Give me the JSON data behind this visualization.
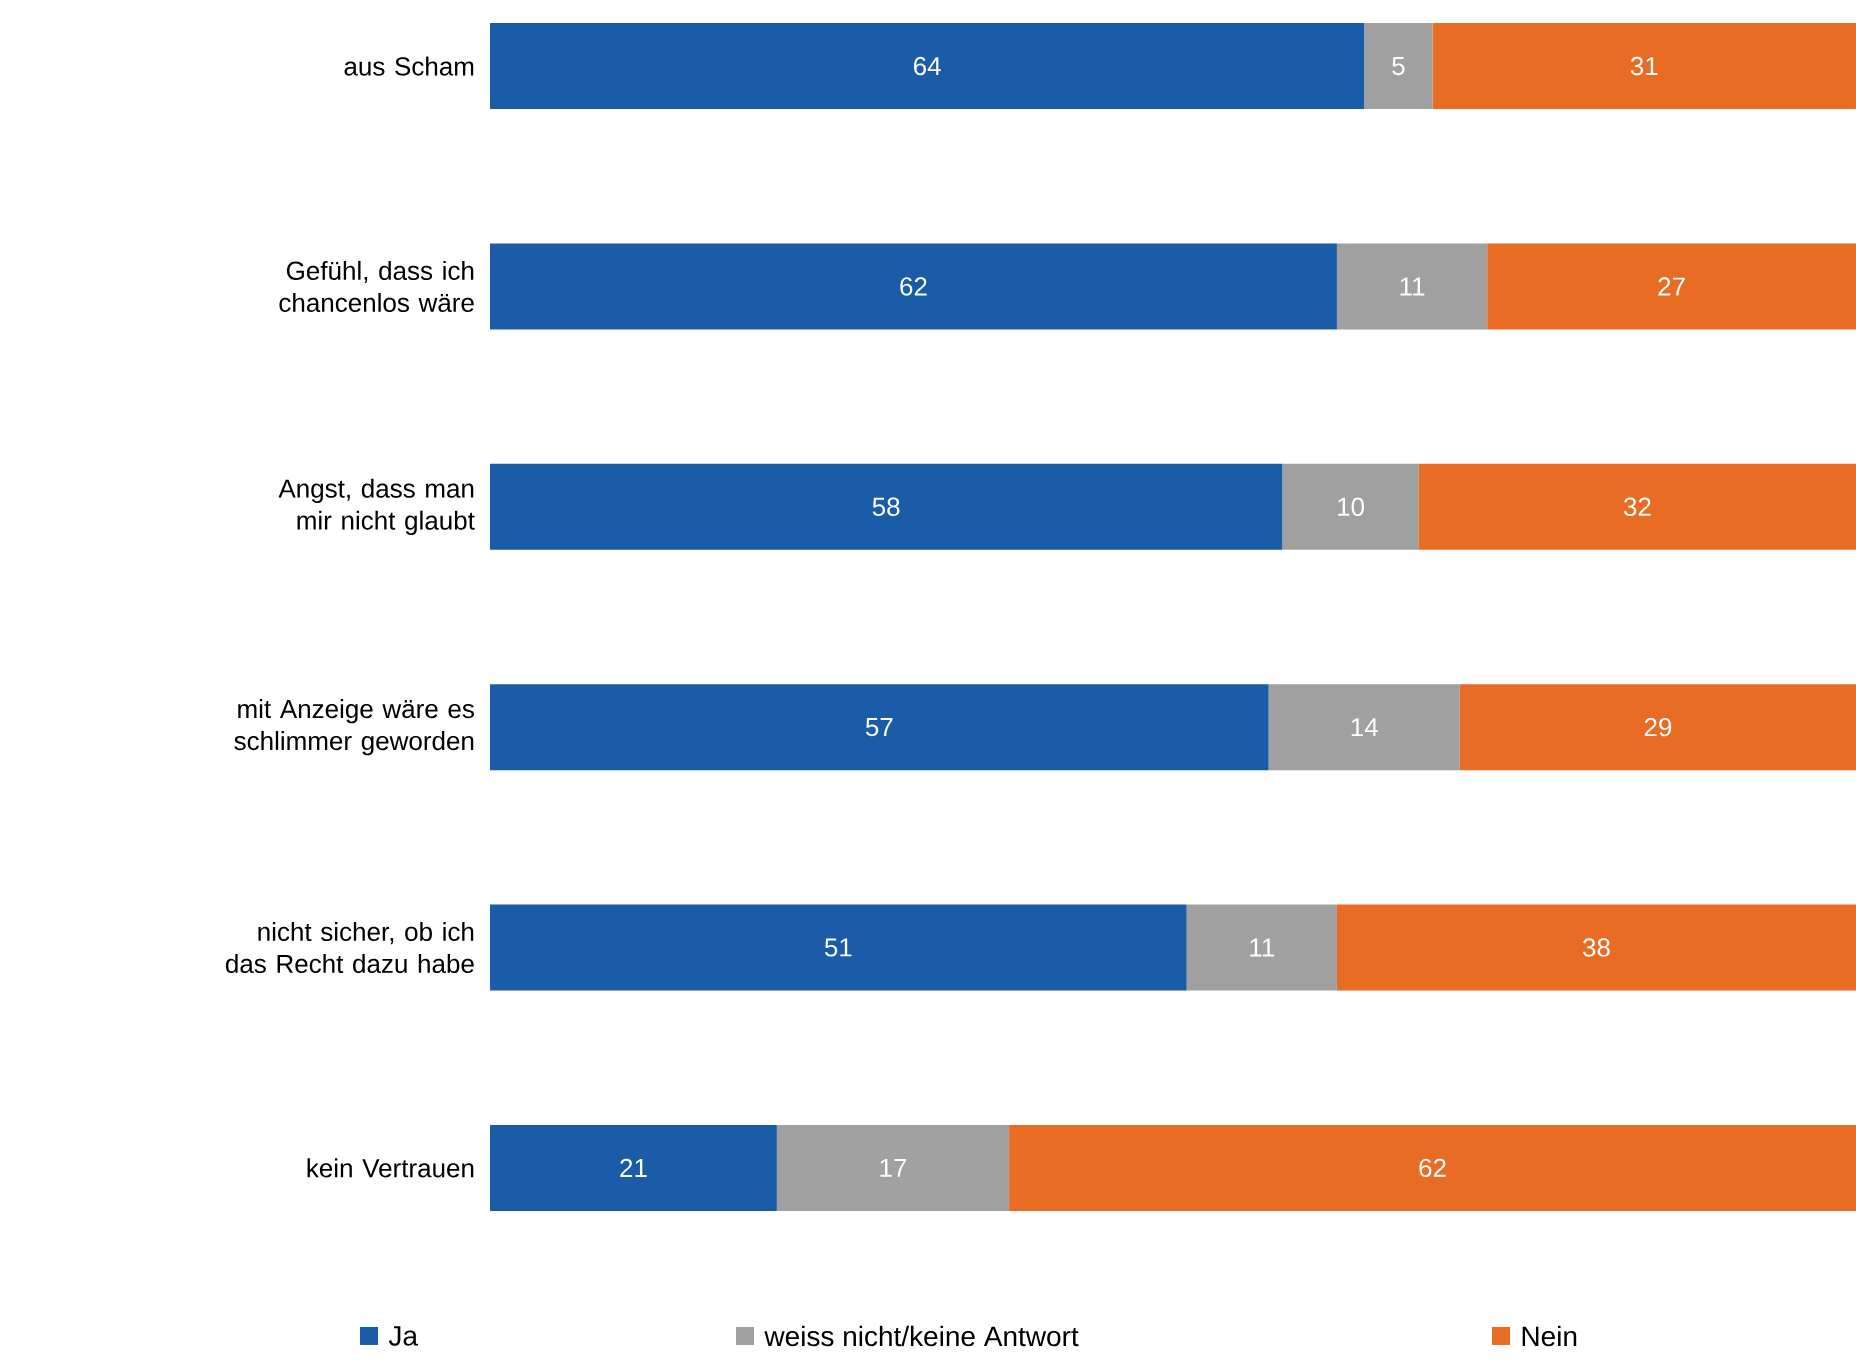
{
  "chart_data": {
    "type": "bar",
    "orientation": "horizontal",
    "stacked": true,
    "data_labels": true,
    "legend": "bottom",
    "xlim": [
      0,
      100
    ],
    "tick_labels": "y",
    "categories": [
      "aus Scham",
      "Gefühl, dass ich chancenlos wäre",
      "Angst, dass man mir nicht glaubt",
      "mit Anzeige wäre es schlimmer geworden",
      "nicht sicher, ob ich das Recht dazu habe",
      "kein Vertrauen"
    ],
    "series": [
      {
        "name": "Ja",
        "color": "#1a5ca8",
        "values": [
          64,
          62,
          58,
          57,
          51,
          21
        ]
      },
      {
        "name": "weiss nicht/keine Antwort",
        "color": "#a0a0a0",
        "values": [
          5,
          11,
          10,
          14,
          11,
          17
        ]
      },
      {
        "name": "Nein",
        "color": "#e86c24",
        "values": [
          31,
          27,
          32,
          29,
          38,
          62
        ]
      }
    ]
  }
}
